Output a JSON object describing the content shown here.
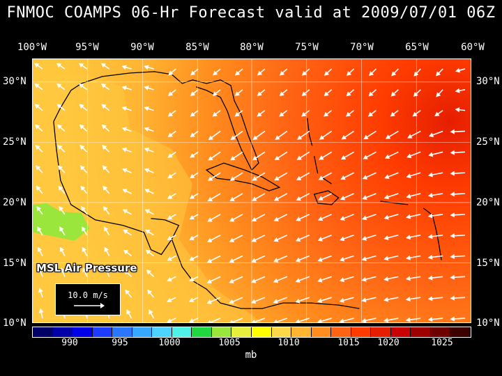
{
  "title": "FNMOC COAMPS 06-Hr Forecast valid at 2009/07/01 06Z",
  "lon_labels": [
    "100°W",
    "95°W",
    "90°W",
    "85°W",
    "80°W",
    "75°W",
    "70°W",
    "65°W",
    "60°W"
  ],
  "lat_labels": [
    "30°N",
    "25°N",
    "20°N",
    "15°N",
    "10°N"
  ],
  "field_label": "MSL Air Pressure",
  "wind_ref_label": "10.0 m/s",
  "colorbar": {
    "unit": "mb",
    "ticks": [
      "990",
      "995",
      "1000",
      "1005",
      "1010",
      "1015",
      "1020",
      "1025"
    ],
    "colors": [
      "#000066",
      "#0000a8",
      "#0000e6",
      "#1e3cff",
      "#2a76ff",
      "#36a8ff",
      "#4ed2ff",
      "#4ef2e6",
      "#20d840",
      "#9ae63c",
      "#e6f03c",
      "#ffff00",
      "#ffd84a",
      "#ffb432",
      "#ff8c1e",
      "#ff6414",
      "#ff3c00",
      "#e61e00",
      "#c80000",
      "#9e0000",
      "#6e0000",
      "#3c0000"
    ]
  },
  "colors": {
    "background": "#000000",
    "text": "#ffffff",
    "coastline": "#000000",
    "grid": "#ffffff",
    "wind_vectors": "#ffffff"
  }
}
